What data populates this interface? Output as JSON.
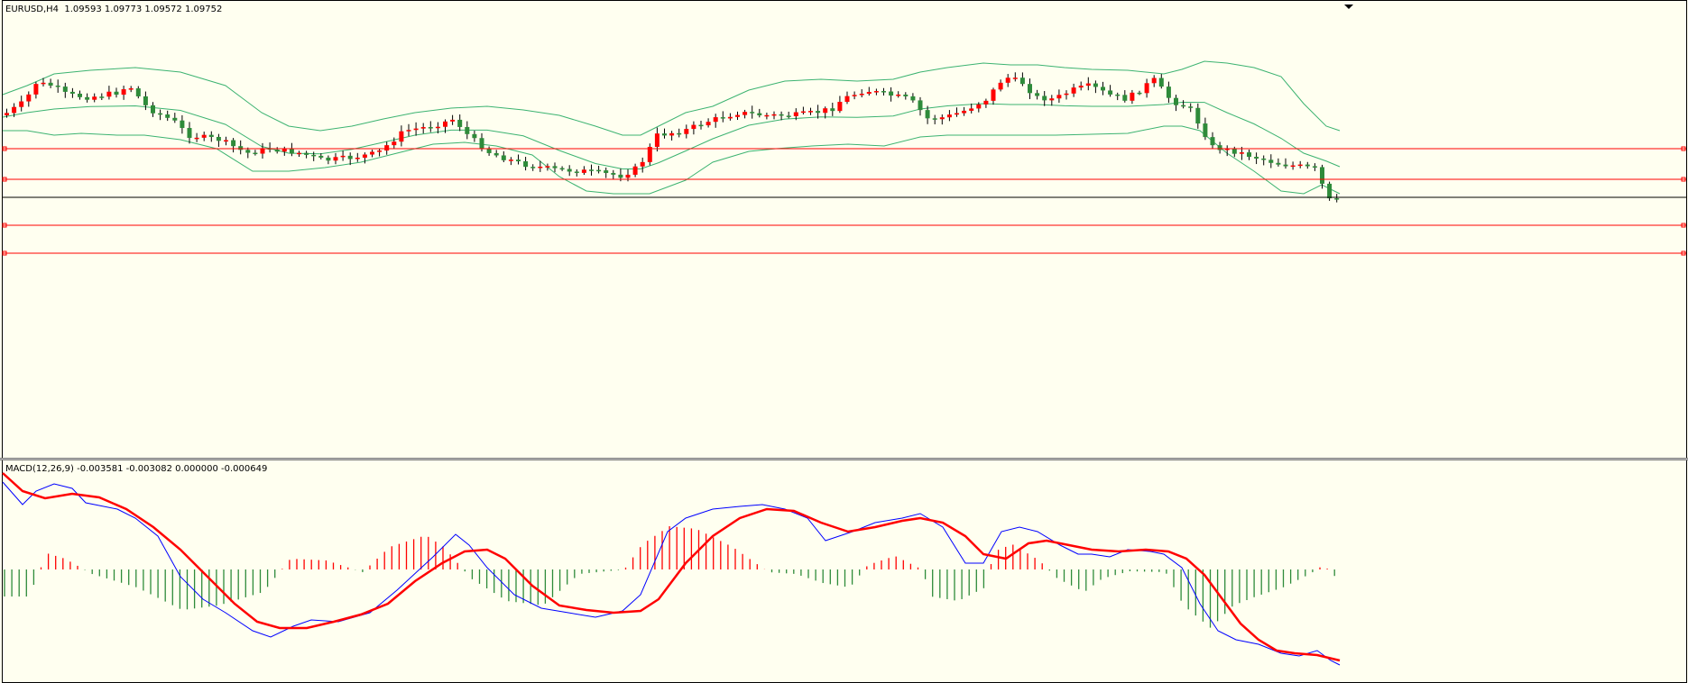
{
  "main_legend": "EURUSD,H4  1.09593 1.09773 1.09572 1.09752",
  "macd_legend": "MACD(12,26,9) -0.003581 -0.003082 0.000000 -0.000649",
  "colors": {
    "background": "#fffff0",
    "bull_candle": "#ff0000",
    "bear_candle": "#2e8b3a",
    "bollinger": "#3cb371",
    "level_line": "#ff0000",
    "bid_line": "#000000",
    "macd_main": "#0000ff",
    "macd_signal": "#ff0000",
    "hist_positive": "#ff0000",
    "hist_negative": "#2e8b3a"
  },
  "icons": {
    "shift_marker": "shift-triangle-icon"
  }
}
